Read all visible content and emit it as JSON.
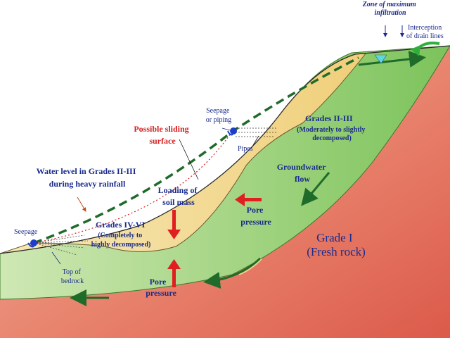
{
  "labels": {
    "zone_max_infiltration": [
      "Zone of maximum",
      "infiltration"
    ],
    "interception_drain_lines": [
      "Interception",
      "of drain lines"
    ],
    "seepage_piping": [
      "Seepage",
      "or piping"
    ],
    "possible_sliding_surface": [
      "Possible sliding",
      "surface"
    ],
    "grades_2_3_title": "Grades II-III",
    "grades_2_3_desc": [
      "(Moderately to slightly",
      "decomposed)"
    ],
    "pipes": "Pipes",
    "water_level": [
      "Water level in Grades II-III",
      "during heavy rainfall"
    ],
    "groundwater_flow": [
      "Groundwater",
      "flow"
    ],
    "loading_soil_mass": [
      "Loading of",
      "soil mass"
    ],
    "pore_pressure_upper": [
      "Pore",
      "pressure"
    ],
    "seepage_left": "Seepage",
    "grades_4_6_title": "Grades IV-VI",
    "grades_4_6_desc": [
      "(Completely to",
      "highly decomposed)"
    ],
    "grade_1": [
      "Grade I",
      "(Fresh rock)"
    ],
    "top_of_bedrock": [
      "Top of",
      "bedrock"
    ],
    "pore_pressure_lower": [
      "Pore",
      "pressure"
    ]
  },
  "colors": {
    "fresh_rock": "#e6705f",
    "decomposed_green": "#8fcf6f",
    "weathered_soil": "#f2d88a",
    "water_table_line": "#1f6b2a",
    "load_arrow": "#e02020",
    "flow_arrow": "#1f6b2a",
    "seepage_blue": "#1e3ec8",
    "label_navy": "#1a2b8c",
    "label_red": "#d42020"
  },
  "icons": [
    "seepage-drop-icon",
    "infiltration-arrow-icon",
    "drain-drop-icon",
    "flow-arrow-icon",
    "load-arrow-icon"
  ]
}
